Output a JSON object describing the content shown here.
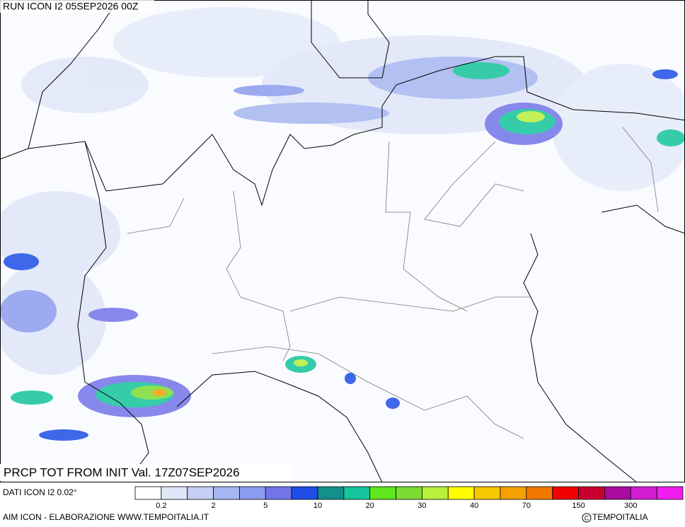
{
  "header": {
    "run": "RUN ICON I2 05SEP2026 00Z"
  },
  "map": {
    "caption": "PRCP TOT FROM INIT Val. 17Z07SEP2026"
  },
  "legend": {
    "source": "DATI ICON I2 0.02°",
    "colors": [
      "#ffffff",
      "#dfe6f8",
      "#c3cff5",
      "#a6b6f1",
      "#8c9cee",
      "#7274e8",
      "#1e4ee6",
      "#138f8c",
      "#14c49c",
      "#5ee61e",
      "#7adc32",
      "#b8f03c",
      "#ffff00",
      "#f5c800",
      "#f5a000",
      "#f07800",
      "#f00000",
      "#c8002d",
      "#aa0aa0",
      "#d21ed2",
      "#f01ef0"
    ],
    "levels": [
      "0.2",
      "2",
      "5",
      "10",
      "20",
      "30",
      "40",
      "70",
      "150",
      "300"
    ]
  },
  "footer": {
    "credit": "AIM ICON - ELABORAZIONE WWW.TEMPOITALIA.IT",
    "copyright": "TEMPOITALIA"
  }
}
